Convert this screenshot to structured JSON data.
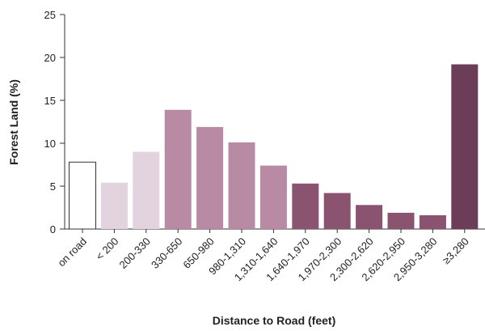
{
  "chart_data": {
    "type": "bar",
    "title": "",
    "xlabel": "Distance to Road (feet)",
    "ylabel": "Forest Land (%)",
    "ylim": [
      0,
      25
    ],
    "yticks": [
      "0",
      "5",
      "10",
      "15",
      "20",
      "25"
    ],
    "grid": false,
    "legend": "none",
    "categories": [
      "on road",
      "< 200",
      "200-330",
      "330-650",
      "650-980",
      "980-1,310",
      "1,310-1,640",
      "1,640-1,970",
      "1,970-2,300",
      "2,300-2,620",
      "2,620-2,950",
      "2,950-3,280",
      "≥3,280"
    ],
    "values": [
      7.8,
      5.4,
      9.0,
      13.9,
      11.9,
      10.1,
      7.4,
      5.3,
      4.2,
      2.8,
      1.9,
      1.6,
      19.2
    ],
    "colors": [
      "#ffffff",
      "#e2d3df",
      "#e2d3df",
      "#b98aa3",
      "#b98aa3",
      "#b98aa3",
      "#b98aa3",
      "#8a5470",
      "#8a5470",
      "#8a5470",
      "#8a5470",
      "#8a5470",
      "#6b3d58"
    ]
  }
}
